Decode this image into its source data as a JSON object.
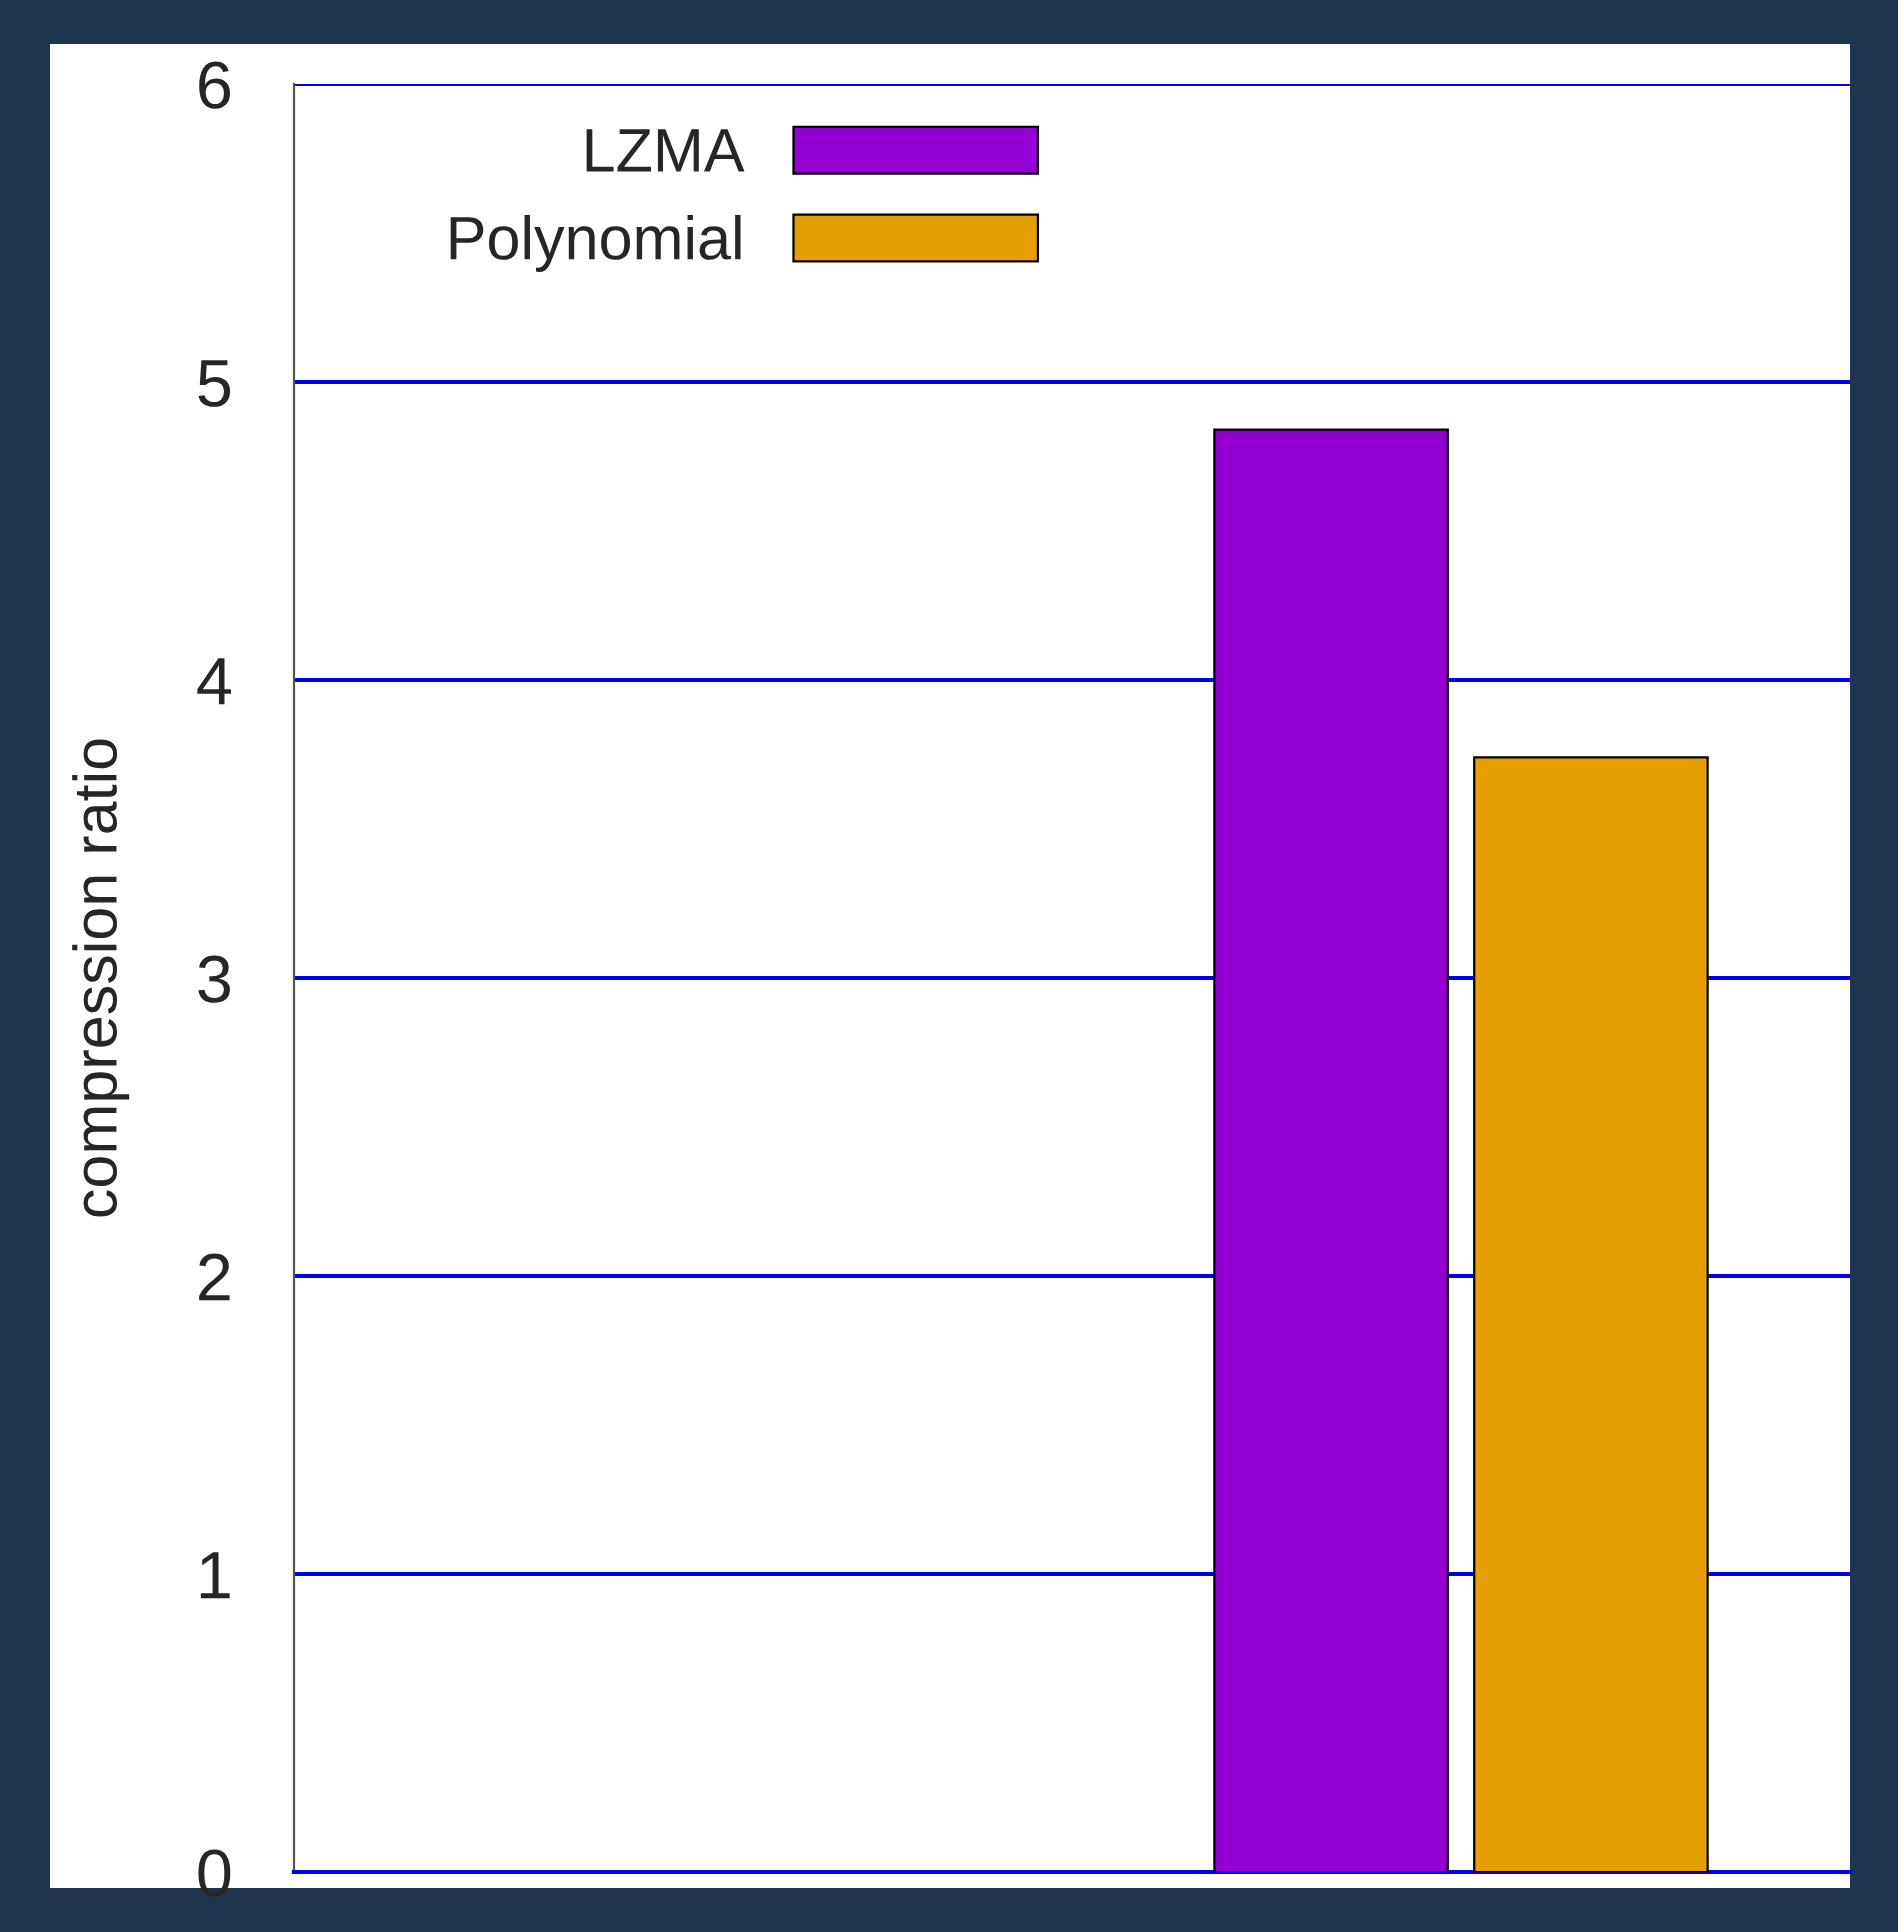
{
  "chart_data": {
    "type": "bar",
    "ylabel": "compression ratio",
    "categories": [
      null,
      null
    ],
    "series": [
      {
        "name": "LZMA",
        "color": "#9400d3",
        "values": [
          null,
          4.84
        ]
      },
      {
        "name": "Polynomial",
        "color": "#e69f00",
        "values": [
          null,
          3.74
        ]
      }
    ],
    "ylim": [
      0,
      6
    ],
    "yticks": [
      0,
      1,
      2,
      3,
      4,
      5,
      6
    ],
    "grid": "y",
    "legend": "top left"
  }
}
